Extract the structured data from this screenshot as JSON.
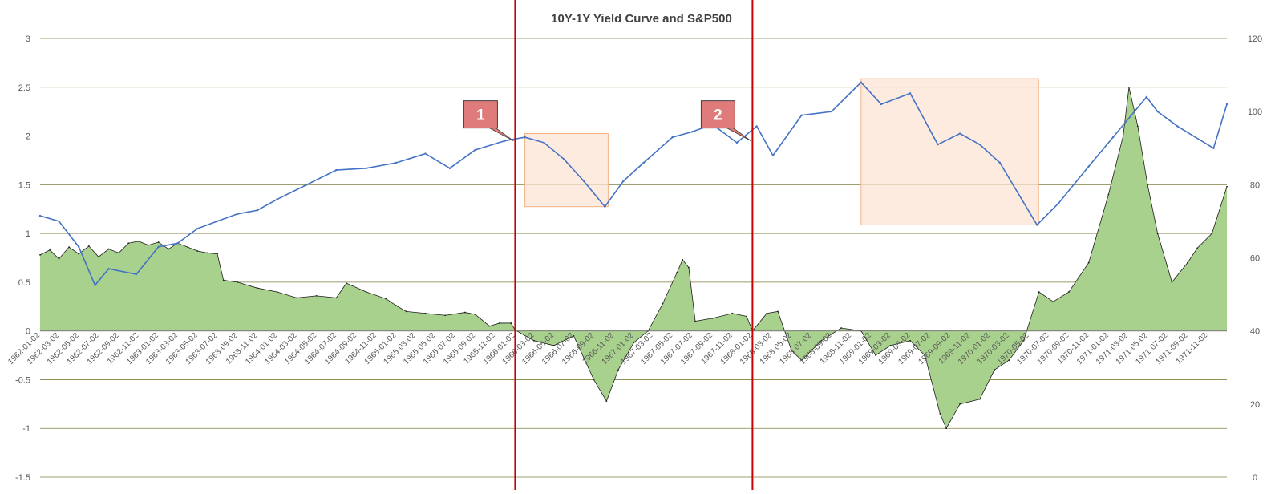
{
  "chart_data": {
    "type": "area",
    "title": "10Y-1Y Yield Curve and S&P500",
    "xlabel": "",
    "ylabel": "",
    "y_left": {
      "range": [
        -1.5,
        3
      ],
      "ticks": [
        "3",
        "2.5",
        "2",
        "1.5",
        "1",
        "0.5",
        "0",
        "-0.5",
        "-1",
        "-1.5"
      ],
      "tick_values": [
        3,
        2.5,
        2,
        1.5,
        1,
        0.5,
        0,
        -0.5,
        -1,
        -1.5
      ]
    },
    "y_right": {
      "range": [
        0,
        120
      ],
      "ticks": [
        "120",
        "100",
        "80",
        "60",
        "40",
        "20",
        "0"
      ],
      "tick_values": [
        120,
        100,
        80,
        60,
        40,
        20,
        0
      ]
    },
    "x_range": [
      "1962-01-02",
      "1971-12-31"
    ],
    "x_tick_labels": [
      "1962-01-02",
      "1962-03-02",
      "1962-05-02",
      "1962-07-02",
      "1962-09-02",
      "1962-11-02",
      "1963-01-02",
      "1963-03-02",
      "1963-05-02",
      "1963-07-02",
      "1963-09-02",
      "1963-11-02",
      "1964-01-02",
      "1964-03-02",
      "1964-05-02",
      "1964-07-02",
      "1964-09-02",
      "1964-11-02",
      "1965-01-02",
      "1965-03-02",
      "1965-05-02",
      "1965-07-02",
      "1965-09-02",
      "1965-11-02",
      "1966-01-02",
      "1966-03-02",
      "1966-05-02",
      "1966-07-02",
      "1966-09-02",
      "1966-11-02",
      "1967-01-02",
      "1967-03-02",
      "1967-05-02",
      "1967-07-02",
      "1967-09-02",
      "1967-11-02",
      "1968-01-02",
      "1968-03-02",
      "1968-05-02",
      "1968-07-02",
      "1968-09-02",
      "1968-11-02",
      "1969-01-02",
      "1969-03-02",
      "1969-05-02",
      "1969-07-02",
      "1969-09-02",
      "1969-11-02",
      "1970-01-02",
      "1970-03-02",
      "1970-05-02",
      "1970-07-02",
      "1970-09-02",
      "1970-11-02",
      "1971-01-02",
      "1971-03-02",
      "1971-05-02",
      "1971-07-02",
      "1971-09-02",
      "1971-11-02"
    ],
    "grid": true,
    "series": [
      {
        "name": "10Y-1Y",
        "axis": "left",
        "type": "area",
        "color": "#a9d18e",
        "stroke": "#1e1e1e",
        "points": [
          [
            "1962-01-02",
            0.78
          ],
          [
            "1962-02-01",
            0.83
          ],
          [
            "1962-03-01",
            0.74
          ],
          [
            "1962-04-01",
            0.86
          ],
          [
            "1962-05-01",
            0.79
          ],
          [
            "1962-06-01",
            0.87
          ],
          [
            "1962-07-01",
            0.76
          ],
          [
            "1962-08-01",
            0.84
          ],
          [
            "1962-09-01",
            0.8
          ],
          [
            "1962-10-01",
            0.9
          ],
          [
            "1962-11-01",
            0.92
          ],
          [
            "1962-12-01",
            0.88
          ],
          [
            "1963-01-01",
            0.91
          ],
          [
            "1963-02-01",
            0.84
          ],
          [
            "1963-03-01",
            0.9
          ],
          [
            "1963-04-01",
            0.86
          ],
          [
            "1963-05-01",
            0.82
          ],
          [
            "1963-06-01",
            0.8
          ],
          [
            "1963-07-01",
            0.79
          ],
          [
            "1963-07-20",
            0.52
          ],
          [
            "1963-09-01",
            0.5
          ],
          [
            "1963-11-01",
            0.44
          ],
          [
            "1964-01-01",
            0.4
          ],
          [
            "1964-03-01",
            0.34
          ],
          [
            "1964-05-01",
            0.36
          ],
          [
            "1964-07-01",
            0.34
          ],
          [
            "1964-08-01",
            0.49
          ],
          [
            "1964-10-01",
            0.4
          ],
          [
            "1964-12-01",
            0.33
          ],
          [
            "1965-01-01",
            0.26
          ],
          [
            "1965-02-01",
            0.2
          ],
          [
            "1965-04-01",
            0.18
          ],
          [
            "1965-06-01",
            0.16
          ],
          [
            "1965-08-01",
            0.19
          ],
          [
            "1965-09-01",
            0.17
          ],
          [
            "1965-10-15",
            0.05
          ],
          [
            "1965-11-15",
            0.08
          ],
          [
            "1965-12-20",
            0.08
          ],
          [
            "1966-01-02",
            0.01
          ],
          [
            "1966-03-01",
            -0.1
          ],
          [
            "1966-05-01",
            -0.15
          ],
          [
            "1966-07-01",
            -0.05
          ],
          [
            "1966-09-01",
            -0.5
          ],
          [
            "1966-10-10",
            -0.72
          ],
          [
            "1966-11-15",
            -0.4
          ],
          [
            "1967-01-02",
            -0.12
          ],
          [
            "1967-02-15",
            0.0
          ],
          [
            "1967-04-01",
            0.28
          ],
          [
            "1967-05-15",
            0.6
          ],
          [
            "1967-06-01",
            0.73
          ],
          [
            "1967-06-20",
            0.65
          ],
          [
            "1967-07-10",
            0.1
          ],
          [
            "1967-09-01",
            0.13
          ],
          [
            "1967-11-01",
            0.18
          ],
          [
            "1967-12-15",
            0.15
          ],
          [
            "1968-01-02",
            0.0
          ],
          [
            "1968-02-15",
            0.18
          ],
          [
            "1968-03-20",
            0.2
          ],
          [
            "1968-05-01",
            -0.2
          ],
          [
            "1968-06-01",
            -0.3
          ],
          [
            "1968-08-01",
            -0.1
          ],
          [
            "1968-10-01",
            0.03
          ],
          [
            "1968-12-01",
            0.0
          ],
          [
            "1969-01-15",
            -0.25
          ],
          [
            "1969-03-01",
            -0.15
          ],
          [
            "1969-05-01",
            -0.1
          ],
          [
            "1969-06-15",
            -0.25
          ],
          [
            "1969-08-01",
            -0.85
          ],
          [
            "1969-08-20",
            -1.0
          ],
          [
            "1969-10-01",
            -0.75
          ],
          [
            "1969-12-01",
            -0.7
          ],
          [
            "1970-01-15",
            -0.4
          ],
          [
            "1970-03-01",
            -0.3
          ],
          [
            "1970-04-15",
            -0.1
          ],
          [
            "1970-06-01",
            0.4
          ],
          [
            "1970-07-15",
            0.3
          ],
          [
            "1970-09-01",
            0.4
          ],
          [
            "1970-11-01",
            0.7
          ],
          [
            "1971-01-01",
            1.4
          ],
          [
            "1971-02-15",
            2.0
          ],
          [
            "1971-03-05",
            2.5
          ],
          [
            "1971-04-01",
            2.1
          ],
          [
            "1971-05-01",
            1.5
          ],
          [
            "1971-06-01",
            1.0
          ],
          [
            "1971-07-15",
            0.5
          ],
          [
            "1971-09-01",
            0.7
          ],
          [
            "1971-10-01",
            0.85
          ],
          [
            "1971-11-15",
            1.0
          ],
          [
            "1971-12-31",
            1.48
          ]
        ]
      },
      {
        "name": "S&P500",
        "axis": "right",
        "type": "line",
        "color": "#4472c4",
        "points": [
          [
            "1962-01-02",
            71.5
          ],
          [
            "1962-03-01",
            70.0
          ],
          [
            "1962-05-01",
            63.0
          ],
          [
            "1962-06-20",
            52.5
          ],
          [
            "1962-08-01",
            57.0
          ],
          [
            "1962-10-25",
            55.5
          ],
          [
            "1963-01-01",
            63.0
          ],
          [
            "1963-03-01",
            64.0
          ],
          [
            "1963-05-01",
            68.0
          ],
          [
            "1963-07-01",
            70.0
          ],
          [
            "1963-09-01",
            72.0
          ],
          [
            "1963-11-01",
            73.0
          ],
          [
            "1964-01-01",
            76.0
          ],
          [
            "1964-04-01",
            80.0
          ],
          [
            "1964-07-01",
            84.0
          ],
          [
            "1964-10-01",
            84.5
          ],
          [
            "1965-01-01",
            86.0
          ],
          [
            "1965-04-01",
            88.5
          ],
          [
            "1965-06-15",
            84.5
          ],
          [
            "1965-09-01",
            89.5
          ],
          [
            "1965-12-01",
            92.0
          ],
          [
            "1966-02-01",
            93.0
          ],
          [
            "1966-04-01",
            91.5
          ],
          [
            "1966-06-01",
            87.0
          ],
          [
            "1966-08-01",
            81.0
          ],
          [
            "1966-10-05",
            74.0
          ],
          [
            "1966-12-01",
            81.0
          ],
          [
            "1967-02-01",
            86.0
          ],
          [
            "1967-05-01",
            93.0
          ],
          [
            "1967-07-01",
            94.5
          ],
          [
            "1967-09-01",
            96.5
          ],
          [
            "1967-11-15",
            91.5
          ],
          [
            "1968-01-15",
            96.0
          ],
          [
            "1968-03-05",
            88.0
          ],
          [
            "1968-06-01",
            99.0
          ],
          [
            "1968-09-01",
            100.0
          ],
          [
            "1968-12-01",
            108.0
          ],
          [
            "1969-02-01",
            102.0
          ],
          [
            "1969-05-01",
            105.0
          ],
          [
            "1969-07-25",
            91.0
          ],
          [
            "1969-10-01",
            94.0
          ],
          [
            "1969-12-01",
            91.0
          ],
          [
            "1970-02-01",
            86.0
          ],
          [
            "1970-05-26",
            69.0
          ],
          [
            "1970-08-01",
            75.0
          ],
          [
            "1970-11-01",
            85.0
          ],
          [
            "1971-01-15",
            93.0
          ],
          [
            "1971-04-28",
            104.0
          ],
          [
            "1971-06-01",
            100.0
          ],
          [
            "1971-08-01",
            96.0
          ],
          [
            "1971-11-20",
            90.0
          ],
          [
            "1971-12-31",
            102.0
          ]
        ]
      }
    ],
    "annotations": [
      {
        "label": "1",
        "date": "1966-01-02",
        "callout_color": "#e07b7b"
      },
      {
        "label": "2",
        "date": "1968-01-02",
        "callout_color": "#e07b7b"
      }
    ],
    "vertical_lines": [
      {
        "date": "1966-01-02",
        "color": "#cc0000"
      },
      {
        "date": "1968-01-02",
        "color": "#cc0000"
      }
    ],
    "highlight_boxes": [
      {
        "from": "1966-02-01",
        "to": "1966-10-15",
        "y_from": 74,
        "y_to": 94,
        "color": "#fce4d6"
      },
      {
        "from": "1968-12-01",
        "to": "1970-05-31",
        "y_from": 69,
        "y_to": 109,
        "color": "#fce4d6"
      }
    ]
  }
}
